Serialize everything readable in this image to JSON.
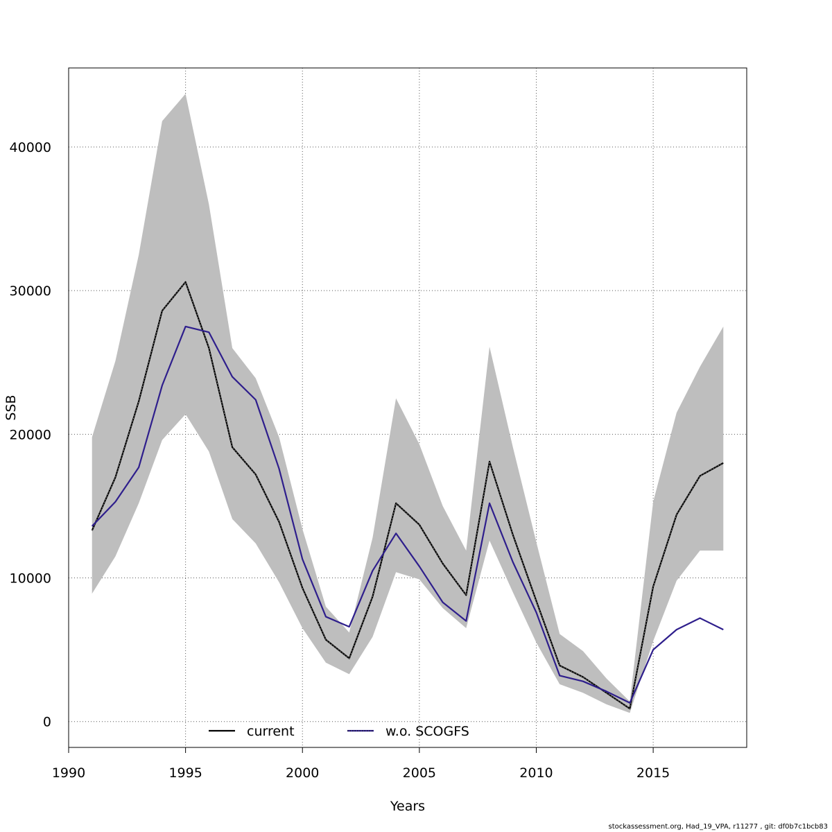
{
  "chart_data": {
    "type": "line",
    "title": "",
    "xlabel": "Years",
    "ylabel": "SSB",
    "xlim": [
      1990,
      2019
    ],
    "ylim": [
      -1800,
      45500
    ],
    "x_ticks": [
      1990,
      1995,
      2000,
      2005,
      2010,
      2015
    ],
    "y_ticks": [
      0,
      10000,
      20000,
      30000,
      40000
    ],
    "grid": true,
    "legend_position": "bottom",
    "x": [
      1991,
      1992,
      1993,
      1994,
      1995,
      1996,
      1997,
      1998,
      1999,
      2000,
      2001,
      2002,
      2003,
      2004,
      2005,
      2006,
      2007,
      2008,
      2009,
      2010,
      2011,
      2012,
      2013,
      2014,
      2015,
      2016,
      2017,
      2018
    ],
    "band": {
      "upper": [
        19800,
        25100,
        32500,
        41800,
        43700,
        36000,
        26000,
        23900,
        19800,
        13400,
        8000,
        6200,
        12800,
        22500,
        19300,
        15000,
        11900,
        26100,
        19100,
        12500,
        6100,
        4900,
        3000,
        1400,
        15300,
        21500,
        24700,
        27500
      ],
      "lower": [
        8900,
        11500,
        15200,
        19600,
        21400,
        18800,
        14100,
        12400,
        9700,
        6500,
        4100,
        3300,
        5900,
        10400,
        9900,
        7900,
        6500,
        12600,
        9000,
        5500,
        2600,
        2000,
        1200,
        600,
        5600,
        9800,
        11900,
        11900
      ],
      "color": "#bebebe"
    },
    "series": [
      {
        "name": "current",
        "color": "#000000",
        "values": [
          13300,
          17000,
          22300,
          28600,
          30600,
          26000,
          19100,
          17200,
          13900,
          9300,
          5700,
          4400,
          8700,
          15200,
          13700,
          11000,
          8800,
          18100,
          13000,
          8400,
          3900,
          3100,
          2000,
          900,
          9400,
          14400,
          17100,
          18000
        ]
      },
      {
        "name": "w.o. SCOGFS",
        "color": "#2e1e8c",
        "values": [
          13600,
          15300,
          17700,
          23400,
          27500,
          27100,
          24000,
          22400,
          17600,
          11300,
          7300,
          6600,
          10500,
          13100,
          10800,
          8300,
          7000,
          15200,
          11100,
          7600,
          3200,
          2800,
          2100,
          1300,
          5000,
          6400,
          7200,
          6400
        ]
      }
    ]
  },
  "footer": {
    "text": "stockassessment.org, Had_19_VPA, r11277 , git: df0b7c1bcb83"
  }
}
